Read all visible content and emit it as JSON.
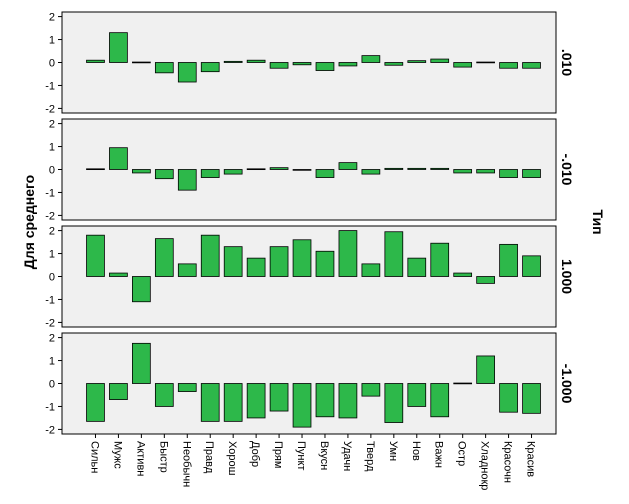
{
  "chart_data": {
    "type": "bar",
    "ylabel": "Для среднего",
    "facet_label": "Тип",
    "ylim": [
      -2.2,
      2.2
    ],
    "yticks": [
      -2,
      -1,
      0,
      1,
      2
    ],
    "ytick_labels": [
      "-2",
      "-1",
      "0",
      "1",
      "2"
    ],
    "bar_color": "#2db84a",
    "panel_bg": "#f0f0f0",
    "categories": [
      "Сильн",
      "Мужс",
      "Активн",
      "Быстр",
      "Необычн",
      "Правд",
      "Хорош",
      "Добр",
      "Прям",
      "Пункт",
      "Вкусн",
      "Удачн",
      "Тверд",
      "Умн",
      "Нов",
      "Важн",
      "Остр",
      "Хладнокр",
      "Красочн",
      "Красив"
    ],
    "panels": [
      {
        "label": ".010",
        "values": [
          0.1,
          1.3,
          0.02,
          -0.45,
          -0.85,
          -0.4,
          0.05,
          0.1,
          -0.25,
          -0.1,
          -0.35,
          -0.15,
          0.3,
          -0.12,
          0.08,
          0.15,
          -0.2,
          0.02,
          -0.25,
          -0.25
        ]
      },
      {
        "label": "-.010",
        "values": [
          0.03,
          0.95,
          -0.15,
          -0.4,
          -0.9,
          -0.35,
          -0.2,
          0.03,
          0.08,
          -0.03,
          -0.35,
          0.3,
          -0.2,
          0.05,
          0.05,
          0.05,
          -0.15,
          -0.15,
          -0.35,
          -0.35
        ]
      },
      {
        "label": "1.000",
        "values": [
          1.8,
          0.15,
          -1.1,
          1.65,
          0.55,
          1.8,
          1.3,
          0.8,
          1.3,
          1.6,
          1.1,
          2.0,
          0.55,
          1.95,
          0.8,
          1.45,
          0.15,
          -0.3,
          1.4,
          0.9
        ]
      },
      {
        "label": "-1.000",
        "values": [
          -1.65,
          -0.7,
          1.75,
          -1.0,
          -0.35,
          -1.65,
          -1.65,
          -1.5,
          -1.2,
          -1.9,
          -1.45,
          -1.5,
          -0.55,
          -1.7,
          -1.0,
          -1.45,
          0.02,
          1.2,
          -1.25,
          -1.3
        ]
      }
    ]
  }
}
